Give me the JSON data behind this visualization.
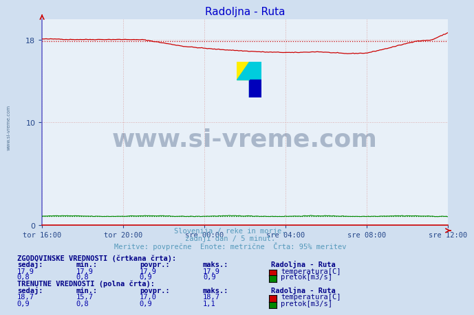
{
  "title": "Radoljna - Ruta",
  "title_color": "#0000cc",
  "bg_color": "#d0dff0",
  "plot_bg_color": "#e8f0f8",
  "xlabel_ticks": [
    "tor 16:00",
    "tor 20:00",
    "sre 00:00",
    "sre 04:00",
    "sre 08:00",
    "sre 12:00"
  ],
  "ylim": [
    0,
    20
  ],
  "yticks": [
    0,
    10,
    18
  ],
  "grid_color": "#c8c8d8",
  "grid_color_red": "#e8b8b8",
  "watermark_text": "www.si-vreme.com",
  "watermark_color": "#1a3560",
  "watermark_alpha": 0.3,
  "subtitle1": "Slovenija / reke in morje.",
  "subtitle2": "zadnji dan / 5 minut.",
  "subtitle3": "Meritve: povprečne  Enote: metrične  Črta: 95% meritev",
  "subtitle_color": "#5599bb",
  "table_title_color": "#000088",
  "table_value_color": "#0000aa",
  "table_header_color": "#000088",
  "n_points": 288,
  "temp_color": "#cc0000",
  "pretok_color": "#008800",
  "left_border_color": "#6666cc",
  "bottom_border_color": "#cc0000",
  "temp_hist_value": 17.9,
  "pretok_hist_value": 0.9,
  "hist_zval_temp": [
    "17,9",
    "17,9",
    "17,9",
    "17,9"
  ],
  "hist_zval_pretok": [
    "0,8",
    "0,8",
    "0,9",
    "0,9"
  ],
  "curr_zval_temp": [
    "18,7",
    "15,7",
    "17,0",
    "18,7"
  ],
  "curr_zval_pretok": [
    "0,9",
    "0,8",
    "0,9",
    "1,1"
  ],
  "col_headers": [
    "sedaj:",
    "min.:",
    "povpr.:",
    "maks.:"
  ]
}
